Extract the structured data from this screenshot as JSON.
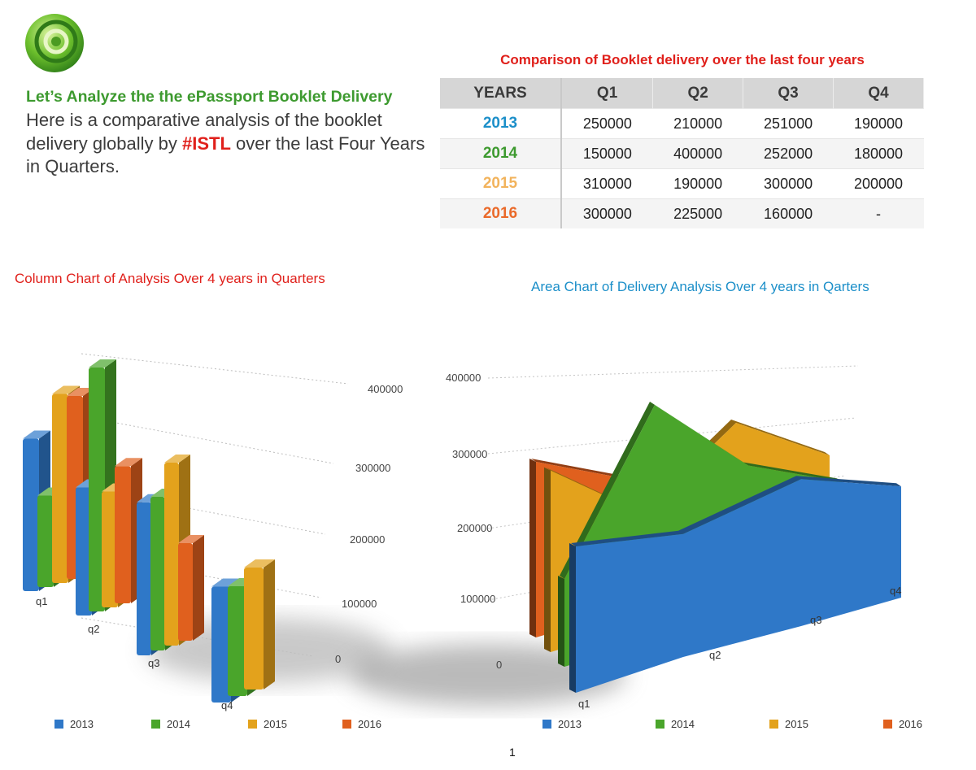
{
  "intro": {
    "headline": "Let’s Analyze the the ePassport Booklet Delivery",
    "body_before": "Here is a comparative analysis of the booklet delivery globally by ",
    "tag": "#ISTL",
    "body_after": " over the last Four Years in Quarters."
  },
  "table": {
    "title": "Comparison of Booklet delivery over the last four years",
    "headers": [
      "YEARS",
      "Q1",
      "Q2",
      "Q3",
      "Q4"
    ],
    "rows": [
      {
        "year": "2013",
        "color": "#1c8fc9",
        "values": [
          "250000",
          "210000",
          "251000",
          "190000"
        ]
      },
      {
        "year": "2014",
        "color": "#3d9a2f",
        "values": [
          "150000",
          "400000",
          "252000",
          "180000"
        ]
      },
      {
        "year": "2015",
        "color": "#f2b35c",
        "values": [
          "310000",
          "190000",
          "300000",
          "200000"
        ]
      },
      {
        "year": "2016",
        "color": "#ea6a2a",
        "values": [
          "300000",
          "225000",
          "160000",
          "-"
        ]
      }
    ]
  },
  "colors": {
    "2013": "#2f78c8",
    "2014": "#4aa52b",
    "2015": "#e3a21c",
    "2016": "#e0601e",
    "accent_red": "#e0201b",
    "accent_blue": "#1c8fc9"
  },
  "chart_data": [
    {
      "type": "bar",
      "title": "Column Chart of Analysis Over 4 years in Quarters",
      "categories": [
        "q1",
        "q2",
        "q3",
        "q4"
      ],
      "series": [
        {
          "name": "2013",
          "values": [
            250000,
            210000,
            251000,
            190000
          ]
        },
        {
          "name": "2014",
          "values": [
            150000,
            400000,
            252000,
            180000
          ]
        },
        {
          "name": "2015",
          "values": [
            310000,
            190000,
            300000,
            200000
          ]
        },
        {
          "name": "2016",
          "values": [
            300000,
            225000,
            160000,
            0
          ]
        }
      ],
      "yticks": [
        "0",
        "100000",
        "200000",
        "300000",
        "400000"
      ],
      "ylim": [
        0,
        400000
      ],
      "legend": "bottom",
      "projection": "3d"
    },
    {
      "type": "area",
      "title": "Area Chart of Delivery Analysis Over 4 years in Qarters",
      "categories": [
        "q1",
        "q2",
        "q3",
        "q4"
      ],
      "series": [
        {
          "name": "2013",
          "values": [
            250000,
            210000,
            251000,
            190000
          ]
        },
        {
          "name": "2014",
          "values": [
            150000,
            400000,
            252000,
            180000
          ]
        },
        {
          "name": "2015",
          "values": [
            310000,
            190000,
            300000,
            200000
          ]
        },
        {
          "name": "2016",
          "values": [
            300000,
            225000,
            160000,
            0
          ]
        }
      ],
      "yticks": [
        "0",
        "100000",
        "200000",
        "300000",
        "400000"
      ],
      "ylim": [
        0,
        400000
      ],
      "legend": "bottom",
      "projection": "3d"
    }
  ],
  "page_number": "1"
}
